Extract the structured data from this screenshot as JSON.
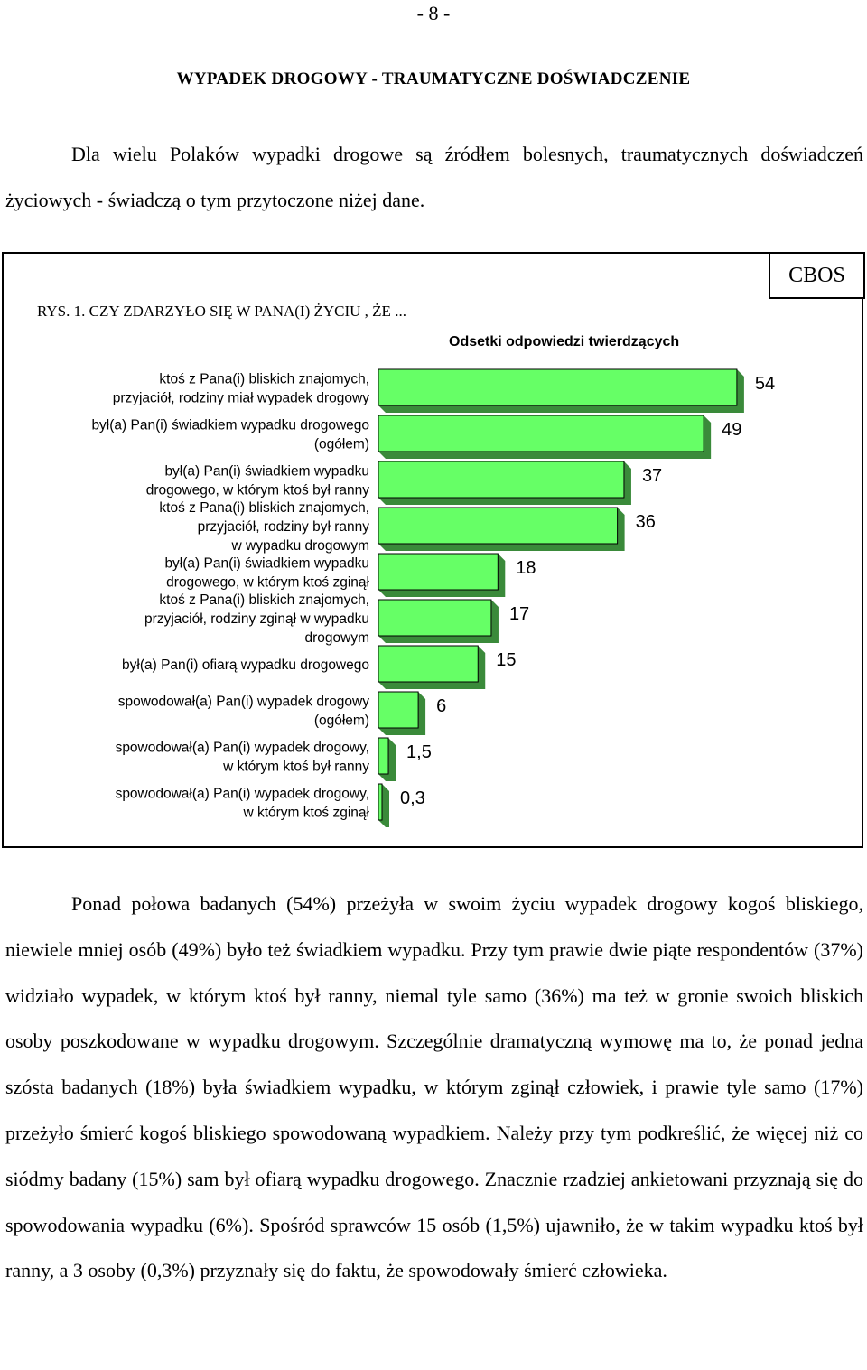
{
  "page_number": "- 8 -",
  "heading": "WYPADEK DROGOWY - TRAUMATYCZNE DOŚWIADCZENIE",
  "intro": "Dla wielu Polaków wypadki drogowe są źródłem bolesnych, traumatycznych doświadczeń życiowych - świadczą o tym przytoczone niżej dane.",
  "figure": {
    "caption": "RYS. 1. CZY ZDARZYŁO SIĘ W PANA(I) ŻYCIU , ŻE ...",
    "source": "CBOS",
    "subtitle": "Odsetki odpowiedzi twierdzących"
  },
  "chart_data": {
    "type": "bar",
    "orientation": "horizontal",
    "title": "RYS. 1. CZY ZDARZYŁO SIĘ W PANA(I) ŻYCIU , ŻE ...",
    "subtitle": "Odsetki odpowiedzi twierdzących",
    "categories": [
      "ktoś z Pana(i) bliskich znajomych, przyjaciół, rodziny miał wypadek drogowy",
      "był(a) Pan(i) świadkiem wypadku drogowego (ogółem)",
      "był(a) Pan(i) świadkiem wypadku drogowego, w którym ktoś był ranny",
      "ktoś z Pana(i) bliskich znajomych, przyjaciół, rodziny był ranny w wypadku drogowym",
      "był(a) Pan(i) świadkiem wypadku drogowego, w którym ktoś zginął",
      "ktoś z Pana(i) bliskich znajomych, przyjaciół, rodziny zginął w wypadku drogowym",
      "był(a) Pan(i) ofiarą wypadku drogowego",
      "spowodował(a) Pan(i) wypadek drogowy (ogółem)",
      "spowodował(a) Pan(i) wypadek drogowy, w którym ktoś był ranny",
      "spowodował(a) Pan(i) wypadek drogowy, w którym ktoś zginął"
    ],
    "category_lines": [
      [
        "ktoś z Pana(i) bliskich znajomych,",
        "przyjaciół, rodziny miał wypadek drogowy"
      ],
      [
        "był(a) Pan(i) świadkiem wypadku drogowego",
        "(ogółem)"
      ],
      [
        "był(a) Pan(i) świadkiem wypadku",
        "drogowego, w którym ktoś był ranny"
      ],
      [
        "ktoś z Pana(i) bliskich znajomych,",
        "przyjaciół, rodziny był ranny",
        "w wypadku drogowym"
      ],
      [
        "był(a) Pan(i) świadkiem wypadku",
        "drogowego, w którym ktoś zginął"
      ],
      [
        "ktoś z Pana(i) bliskich znajomych,",
        "przyjaciół, rodziny zginął w wypadku",
        "drogowym"
      ],
      [
        "był(a) Pan(i) ofiarą wypadku drogowego"
      ],
      [
        "spowodował(a) Pan(i) wypadek drogowy",
        "(ogółem)"
      ],
      [
        "spowodował(a) Pan(i) wypadek drogowy,",
        "w którym ktoś był ranny"
      ],
      [
        "spowodował(a) Pan(i) wypadek drogowy,",
        "w którym ktoś zginął"
      ]
    ],
    "values": [
      54,
      49,
      37,
      36,
      18,
      17,
      15,
      6,
      1.5,
      0.3
    ],
    "value_labels": [
      "54",
      "49",
      "37",
      "36",
      "18",
      "17",
      "15",
      "6",
      "1,5",
      "0,3"
    ],
    "unit": "%",
    "bar_color": "#66ff66",
    "bar_edge_color": "#3a8a3a",
    "axis_visible": false,
    "grid": false,
    "legend": "none"
  },
  "body_text": "Ponad połowa badanych (54%)  przeżyła w swoim życiu wypadek drogowy kogoś bliskiego, niewiele mniej osób (49%) było też świadkiem wypadku. Przy tym prawie dwie piąte respondentów (37%) widziało wypadek, w którym ktoś był ranny, niemal tyle samo (36%) ma też w gronie swoich bliskich osoby poszkodowane w wypadku drogowym. Szczególnie dramatyczną wymowę ma to, że ponad jedna szósta badanych (18%) była świadkiem wypadku, w którym zginął człowiek, i prawie tyle samo (17%) przeżyło śmierć kogoś bliskiego spowodowaną wypadkiem. Należy przy tym podkreślić, że więcej niż co siódmy badany (15%) sam był ofiarą wypadku drogowego. Znacznie rzadziej ankietowani przyznają się do spowodowania wypadku (6%). Spośród sprawców 15 osób (1,5%) ujawniło, że w takim wypadku ktoś był ranny, a 3 osoby (0,3%) przyznały się do faktu, że spowodowały śmierć człowieka."
}
